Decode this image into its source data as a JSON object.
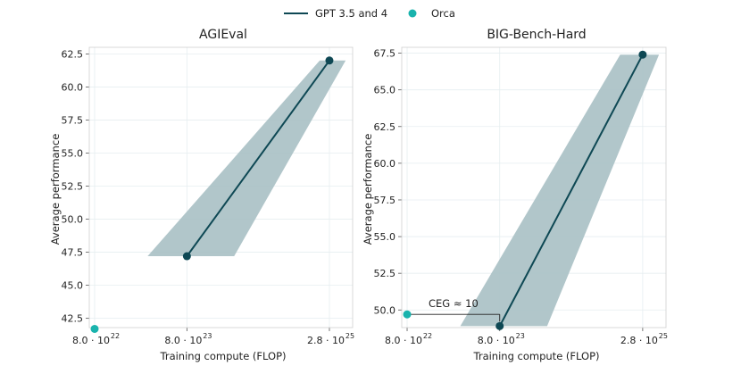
{
  "legend": {
    "gpt_label": "GPT 3.5 and 4",
    "orca_label": "Orca"
  },
  "colors": {
    "gpt": "#0e4854",
    "orca": "#19b3ad",
    "band": "#a9c0c4",
    "grid": "#e6eef0",
    "frame": "#cfcfcf"
  },
  "chart_data": [
    {
      "type": "line",
      "title": "AGIEval",
      "xlabel": "Training compute (FLOP)",
      "ylabel": "Average performance",
      "xscale": "log",
      "xlim": [
        7e+22,
        5e+25
      ],
      "ylim": [
        41.8,
        63.0
      ],
      "xticks": [
        {
          "value": 8e+22,
          "label": "8.0 · 10",
          "exp": "22"
        },
        {
          "value": 8e+23,
          "label": "8.0 · 10",
          "exp": "23"
        },
        {
          "value": 2.8e+25,
          "label": "2.8 · 10",
          "exp": "25"
        }
      ],
      "yticks": [
        {
          "value": 42.5,
          "label": "42.5"
        },
        {
          "value": 45.0,
          "label": "45.0"
        },
        {
          "value": 47.5,
          "label": "47.5"
        },
        {
          "value": 50.0,
          "label": "50.0"
        },
        {
          "value": 52.5,
          "label": "52.5"
        },
        {
          "value": 55.0,
          "label": "55.0"
        },
        {
          "value": 57.5,
          "label": "57.5"
        },
        {
          "value": 60.0,
          "label": "60.0"
        },
        {
          "value": 62.5,
          "label": "62.5"
        }
      ],
      "series": [
        {
          "name": "GPT 3.5 and 4",
          "x": [
            8e+23,
            2.8e+25
          ],
          "y": [
            47.2,
            62.0
          ]
        },
        {
          "name": "Orca",
          "x": [
            8e+22
          ],
          "y": [
            41.7
          ]
        }
      ],
      "band": {
        "y_low": 47.2,
        "y_high": 62.0,
        "x_low_left": 3e+23,
        "x_low_right": 2.6e+24,
        "x_high_left": 2.2e+25,
        "x_high_right": 4.2e+25
      },
      "annotation": null
    },
    {
      "type": "line",
      "title": "BIG-Bench-Hard",
      "xlabel": "Training compute (FLOP)",
      "ylabel": "Average performance",
      "xscale": "log",
      "xlim": [
        7e+22,
        5e+25
      ],
      "ylim": [
        48.8,
        67.9
      ],
      "xticks": [
        {
          "value": 8e+22,
          "label": "8.0 · 10",
          "exp": "22"
        },
        {
          "value": 8e+23,
          "label": "8.0 · 10",
          "exp": "23"
        },
        {
          "value": 2.8e+25,
          "label": "2.8 · 10",
          "exp": "25"
        }
      ],
      "yticks": [
        {
          "value": 50.0,
          "label": "50.0"
        },
        {
          "value": 52.5,
          "label": "52.5"
        },
        {
          "value": 55.0,
          "label": "55.0"
        },
        {
          "value": 57.5,
          "label": "57.5"
        },
        {
          "value": 60.0,
          "label": "60.0"
        },
        {
          "value": 62.5,
          "label": "62.5"
        },
        {
          "value": 65.0,
          "label": "65.0"
        },
        {
          "value": 67.5,
          "label": "67.5"
        }
      ],
      "series": [
        {
          "name": "GPT 3.5 and 4",
          "x": [
            8e+23,
            2.8e+25
          ],
          "y": [
            48.9,
            67.4
          ]
        },
        {
          "name": "Orca",
          "x": [
            8e+22
          ],
          "y": [
            49.7
          ]
        }
      ],
      "band": {
        "y_low": 48.9,
        "y_high": 67.4,
        "x_low_left": 3e+23,
        "x_low_right": 2.6e+24,
        "x_high_left": 1.6e+25,
        "x_high_right": 4.2e+25
      },
      "annotation": {
        "text": "CEG ≈ 10",
        "x_from": 8e+22,
        "x_to": 8e+23,
        "y": 49.7
      }
    }
  ]
}
